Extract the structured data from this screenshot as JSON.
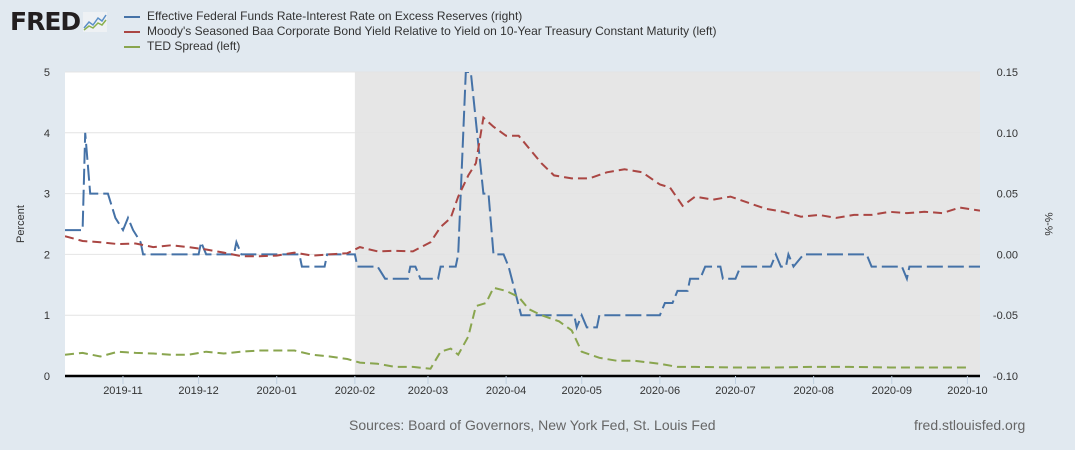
{
  "header": {
    "logo_text": "FRED",
    "logo_icon": "chart-line-icon"
  },
  "footer": {
    "sources": "Sources: Board of Governors, New York Fed, St. Louis Fed",
    "site": "fred.stlouisfed.org"
  },
  "chart_data": {
    "type": "line",
    "x_range": [
      "2019-10-09",
      "2020-10-06"
    ],
    "x_ticks": [
      "2019-11",
      "2019-12",
      "2020-01",
      "2020-02",
      "2020-03",
      "2020-04",
      "2020-05",
      "2020-06",
      "2020-07",
      "2020-08",
      "2020-09",
      "2020-10"
    ],
    "ylabel_left": "Percent",
    "ylabel_right": "%-%",
    "ylim_left": [
      0,
      5
    ],
    "yticks_left": [
      "0",
      "1",
      "2",
      "3",
      "4",
      "5"
    ],
    "ylim_right": [
      -0.1,
      0.15
    ],
    "yticks_right": [
      "-0.10",
      "-0.05",
      "0.00",
      "0.05",
      "0.10",
      "0.15"
    ],
    "grid": "horizontal",
    "legend_placement": "top-left",
    "shaded_region": {
      "start": "2020-02-01",
      "end": "2020-10-06",
      "color": "#e6e6e6"
    },
    "series": [
      {
        "name": "Effective Federal Funds Rate-Interest Rate on Excess Reserves (right)",
        "axis": "right",
        "color": "#4572a7",
        "points": [
          [
            "2019-10-09",
            0.02
          ],
          [
            "2019-10-16",
            0.02
          ],
          [
            "2019-10-17",
            0.1
          ],
          [
            "2019-10-19",
            0.05
          ],
          [
            "2019-10-26",
            0.05
          ],
          [
            "2019-10-29",
            0.03
          ],
          [
            "2019-11-01",
            0.02
          ],
          [
            "2019-11-03",
            0.03
          ],
          [
            "2019-11-05",
            0.02
          ],
          [
            "2019-11-08",
            0.01
          ],
          [
            "2019-11-09",
            0.0
          ],
          [
            "2019-12-01",
            0.0
          ],
          [
            "2019-12-02",
            0.01
          ],
          [
            "2019-12-04",
            0.0
          ],
          [
            "2019-12-15",
            0.0
          ],
          [
            "2019-12-16",
            0.01
          ],
          [
            "2019-12-18",
            0.0
          ],
          [
            "2020-01-10",
            0.0
          ],
          [
            "2020-01-11",
            -0.01
          ],
          [
            "2020-01-20",
            -0.01
          ],
          [
            "2020-01-21",
            0.0
          ],
          [
            "2020-02-01",
            0.0
          ],
          [
            "2020-02-02",
            -0.01
          ],
          [
            "2020-02-10",
            -0.01
          ],
          [
            "2020-02-13",
            -0.02
          ],
          [
            "2020-02-22",
            -0.02
          ],
          [
            "2020-02-23",
            -0.01
          ],
          [
            "2020-02-25",
            -0.01
          ],
          [
            "2020-02-27",
            -0.02
          ],
          [
            "2020-03-05",
            -0.02
          ],
          [
            "2020-03-06",
            -0.01
          ],
          [
            "2020-03-12",
            -0.01
          ],
          [
            "2020-03-13",
            0.0
          ],
          [
            "2020-03-16",
            0.15
          ],
          [
            "2020-03-18",
            0.15
          ],
          [
            "2020-03-23",
            0.05
          ],
          [
            "2020-03-25",
            0.05
          ],
          [
            "2020-03-27",
            0.0
          ],
          [
            "2020-03-31",
            0.0
          ],
          [
            "2020-04-02",
            -0.01
          ],
          [
            "2020-04-07",
            -0.05
          ],
          [
            "2020-04-28",
            -0.05
          ],
          [
            "2020-04-29",
            -0.06
          ],
          [
            "2020-05-01",
            -0.05
          ],
          [
            "2020-05-03",
            -0.06
          ],
          [
            "2020-05-07",
            -0.06
          ],
          [
            "2020-05-08",
            -0.05
          ],
          [
            "2020-06-01",
            -0.05
          ],
          [
            "2020-06-03",
            -0.04
          ],
          [
            "2020-06-06",
            -0.04
          ],
          [
            "2020-06-08",
            -0.03
          ],
          [
            "2020-06-12",
            -0.03
          ],
          [
            "2020-06-13",
            -0.02
          ],
          [
            "2020-06-17",
            -0.02
          ],
          [
            "2020-06-19",
            -0.01
          ],
          [
            "2020-06-25",
            -0.01
          ],
          [
            "2020-06-26",
            -0.02
          ],
          [
            "2020-07-01",
            -0.02
          ],
          [
            "2020-07-03",
            -0.01
          ],
          [
            "2020-07-15",
            -0.01
          ],
          [
            "2020-07-17",
            0.0
          ],
          [
            "2020-07-19",
            -0.01
          ],
          [
            "2020-07-21",
            -0.01
          ],
          [
            "2020-07-22",
            0.0
          ],
          [
            "2020-07-24",
            -0.01
          ],
          [
            "2020-07-28",
            0.0
          ],
          [
            "2020-08-22",
            0.0
          ],
          [
            "2020-08-24",
            -0.01
          ],
          [
            "2020-09-05",
            -0.01
          ],
          [
            "2020-09-07",
            -0.02
          ],
          [
            "2020-09-08",
            -0.01
          ],
          [
            "2020-10-06",
            -0.01
          ]
        ]
      },
      {
        "name": "Moody's Seasoned Baa Corporate Bond Yield Relative to Yield on 10-Year Treasury Constant Maturity (left)",
        "axis": "left",
        "color": "#aa4643",
        "points": [
          [
            "2019-10-09",
            2.3
          ],
          [
            "2019-10-16",
            2.22
          ],
          [
            "2019-10-23",
            2.2
          ],
          [
            "2019-10-30",
            2.17
          ],
          [
            "2019-11-06",
            2.18
          ],
          [
            "2019-11-13",
            2.12
          ],
          [
            "2019-11-20",
            2.15
          ],
          [
            "2019-11-27",
            2.12
          ],
          [
            "2019-12-04",
            2.08
          ],
          [
            "2019-12-11",
            2.03
          ],
          [
            "2019-12-18",
            1.97
          ],
          [
            "2019-12-25",
            1.97
          ],
          [
            "2020-01-01",
            1.98
          ],
          [
            "2020-01-08",
            2.03
          ],
          [
            "2020-01-15",
            1.98
          ],
          [
            "2020-01-22",
            2.0
          ],
          [
            "2020-01-29",
            2.02
          ],
          [
            "2020-02-03",
            2.12
          ],
          [
            "2020-02-10",
            2.05
          ],
          [
            "2020-02-17",
            2.06
          ],
          [
            "2020-02-24",
            2.05
          ],
          [
            "2020-03-02",
            2.2
          ],
          [
            "2020-03-06",
            2.45
          ],
          [
            "2020-03-10",
            2.6
          ],
          [
            "2020-03-13",
            2.95
          ],
          [
            "2020-03-17",
            3.3
          ],
          [
            "2020-03-20",
            3.5
          ],
          [
            "2020-03-23",
            4.25
          ],
          [
            "2020-03-27",
            4.1
          ],
          [
            "2020-04-01",
            3.95
          ],
          [
            "2020-04-06",
            3.95
          ],
          [
            "2020-04-10",
            3.75
          ],
          [
            "2020-04-15",
            3.5
          ],
          [
            "2020-04-20",
            3.3
          ],
          [
            "2020-04-27",
            3.25
          ],
          [
            "2020-05-04",
            3.25
          ],
          [
            "2020-05-11",
            3.35
          ],
          [
            "2020-05-18",
            3.4
          ],
          [
            "2020-05-25",
            3.35
          ],
          [
            "2020-06-01",
            3.15
          ],
          [
            "2020-06-05",
            3.1
          ],
          [
            "2020-06-10",
            2.8
          ],
          [
            "2020-06-15",
            2.95
          ],
          [
            "2020-06-22",
            2.9
          ],
          [
            "2020-06-29",
            2.95
          ],
          [
            "2020-07-06",
            2.85
          ],
          [
            "2020-07-13",
            2.75
          ],
          [
            "2020-07-20",
            2.7
          ],
          [
            "2020-07-27",
            2.62
          ],
          [
            "2020-08-03",
            2.65
          ],
          [
            "2020-08-10",
            2.6
          ],
          [
            "2020-08-17",
            2.65
          ],
          [
            "2020-08-24",
            2.65
          ],
          [
            "2020-08-31",
            2.7
          ],
          [
            "2020-09-07",
            2.68
          ],
          [
            "2020-09-14",
            2.7
          ],
          [
            "2020-09-21",
            2.68
          ],
          [
            "2020-09-28",
            2.77
          ],
          [
            "2020-10-06",
            2.72
          ]
        ]
      },
      {
        "name": "TED Spread (left)",
        "axis": "left",
        "color": "#89a54e",
        "points": [
          [
            "2019-10-09",
            0.35
          ],
          [
            "2019-10-16",
            0.38
          ],
          [
            "2019-10-23",
            0.32
          ],
          [
            "2019-10-30",
            0.4
          ],
          [
            "2019-11-06",
            0.38
          ],
          [
            "2019-11-13",
            0.37
          ],
          [
            "2019-11-20",
            0.35
          ],
          [
            "2019-11-27",
            0.35
          ],
          [
            "2019-12-04",
            0.4
          ],
          [
            "2019-12-11",
            0.37
          ],
          [
            "2019-12-18",
            0.4
          ],
          [
            "2019-12-25",
            0.42
          ],
          [
            "2020-01-08",
            0.42
          ],
          [
            "2020-01-15",
            0.35
          ],
          [
            "2020-01-22",
            0.32
          ],
          [
            "2020-01-29",
            0.28
          ],
          [
            "2020-02-03",
            0.22
          ],
          [
            "2020-02-10",
            0.2
          ],
          [
            "2020-02-17",
            0.15
          ],
          [
            "2020-02-24",
            0.15
          ],
          [
            "2020-03-02",
            0.12
          ],
          [
            "2020-03-06",
            0.4
          ],
          [
            "2020-03-10",
            0.45
          ],
          [
            "2020-03-13",
            0.35
          ],
          [
            "2020-03-17",
            0.65
          ],
          [
            "2020-03-20",
            1.15
          ],
          [
            "2020-03-24",
            1.2
          ],
          [
            "2020-03-27",
            1.45
          ],
          [
            "2020-04-01",
            1.4
          ],
          [
            "2020-04-06",
            1.3
          ],
          [
            "2020-04-10",
            1.1
          ],
          [
            "2020-04-15",
            1.0
          ],
          [
            "2020-04-22",
            0.9
          ],
          [
            "2020-04-27",
            0.75
          ],
          [
            "2020-05-01",
            0.4
          ],
          [
            "2020-05-08",
            0.3
          ],
          [
            "2020-05-15",
            0.25
          ],
          [
            "2020-05-22",
            0.25
          ],
          [
            "2020-06-01",
            0.2
          ],
          [
            "2020-06-08",
            0.15
          ],
          [
            "2020-06-15",
            0.15
          ],
          [
            "2020-07-01",
            0.14
          ],
          [
            "2020-07-15",
            0.14
          ],
          [
            "2020-08-01",
            0.15
          ],
          [
            "2020-08-15",
            0.15
          ],
          [
            "2020-09-01",
            0.14
          ],
          [
            "2020-09-15",
            0.14
          ],
          [
            "2020-10-01",
            0.14
          ]
        ]
      }
    ]
  }
}
